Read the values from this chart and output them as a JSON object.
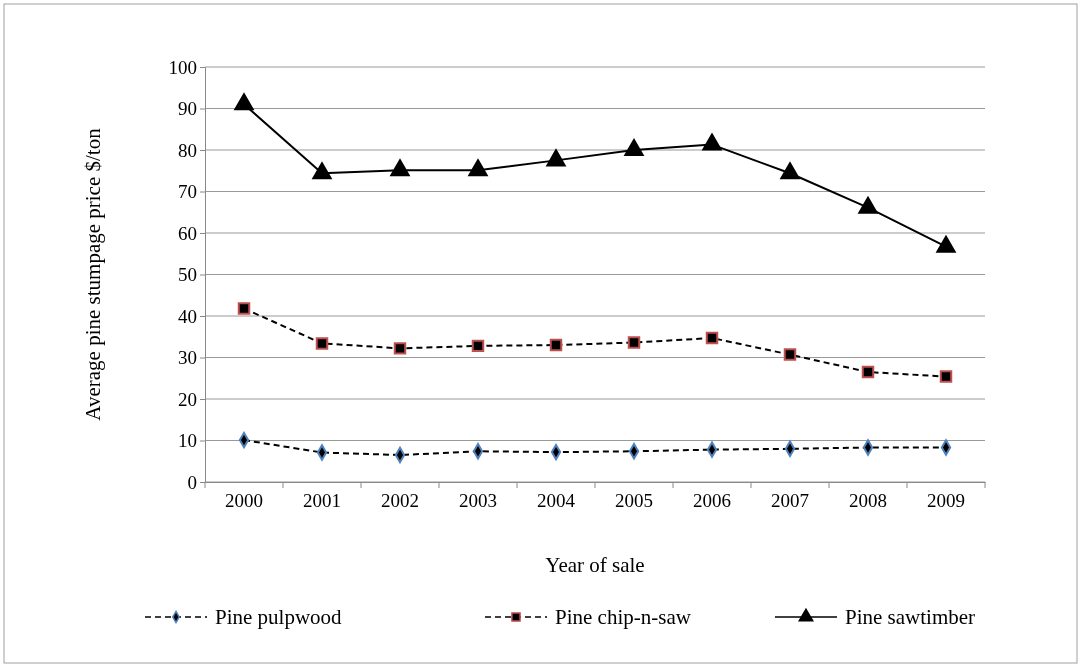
{
  "chart_data": {
    "type": "line",
    "xlabel": "Year of sale",
    "ylabel": "Average pine stumpage price $/ton",
    "categories": [
      "2000",
      "2001",
      "2002",
      "2003",
      "2004",
      "2005",
      "2006",
      "2007",
      "2008",
      "2009"
    ],
    "ylim": [
      0,
      100
    ],
    "yticks": [
      0,
      10,
      20,
      30,
      40,
      50,
      60,
      70,
      80,
      90,
      100
    ],
    "grid": "y",
    "legend": "bottom",
    "series": [
      {
        "name": "Pine pulpwood",
        "color": "#4f81bd",
        "marker": "diamond",
        "line_style": "dashed",
        "values": [
          10.1,
          7.1,
          6.5,
          7.4,
          7.2,
          7.4,
          7.8,
          8.0,
          8.3,
          8.3
        ]
      },
      {
        "name": "Pine chip-n-saw",
        "color": "#c0504d",
        "marker": "square",
        "line_style": "dashed",
        "values": [
          41.8,
          33.4,
          32.2,
          32.8,
          33.0,
          33.6,
          34.7,
          30.7,
          26.5,
          25.4
        ]
      },
      {
        "name": "Pine sawtimber",
        "color": "#000000",
        "marker": "triangle",
        "line_style": "solid",
        "values": [
          91.0,
          74.4,
          75.1,
          75.1,
          77.5,
          80.0,
          81.3,
          74.4,
          66.1,
          56.7
        ]
      }
    ]
  }
}
